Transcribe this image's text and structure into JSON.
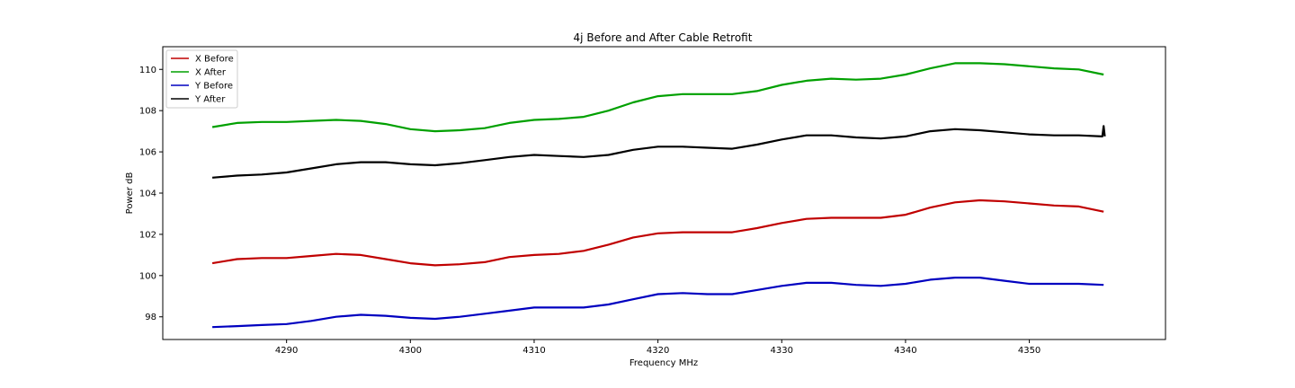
{
  "chart_data": {
    "type": "line",
    "title": "4j Before and After Cable Retrofit",
    "xlabel": "Frequency MHz",
    "ylabel": "Power dB",
    "xlim": [
      4280,
      4361
    ],
    "ylim": [
      96.9,
      111.1
    ],
    "xticks": [
      4290,
      4300,
      4310,
      4320,
      4330,
      4340,
      4350
    ],
    "yticks": [
      98,
      100,
      102,
      104,
      106,
      108,
      110
    ],
    "grid": false,
    "legend_position": "top-left",
    "series": [
      {
        "name": "X Before",
        "color": "#c00000",
        "x": [
          4284,
          4286,
          4288,
          4290,
          4292,
          4294,
          4296,
          4298,
          4300,
          4302,
          4304,
          4306,
          4308,
          4310,
          4312,
          4314,
          4316,
          4318,
          4320,
          4322,
          4324,
          4326,
          4328,
          4330,
          4332,
          4334,
          4336,
          4338,
          4340,
          4342,
          4344,
          4346,
          4348,
          4350,
          4352,
          4354,
          4356
        ],
        "y": [
          100.6,
          100.8,
          100.85,
          100.85,
          100.95,
          101.05,
          101.0,
          100.8,
          100.6,
          100.5,
          100.55,
          100.65,
          100.9,
          101.0,
          101.05,
          101.2,
          101.5,
          101.85,
          102.05,
          102.1,
          102.1,
          102.1,
          102.3,
          102.55,
          102.75,
          102.8,
          102.8,
          102.8,
          102.95,
          103.3,
          103.55,
          103.65,
          103.6,
          103.5,
          103.4,
          103.35,
          103.1
        ]
      },
      {
        "name": "X After",
        "color": "#00a000",
        "x": [
          4284,
          4286,
          4288,
          4290,
          4292,
          4294,
          4296,
          4298,
          4300,
          4302,
          4304,
          4306,
          4308,
          4310,
          4312,
          4314,
          4316,
          4318,
          4320,
          4322,
          4324,
          4326,
          4328,
          4330,
          4332,
          4334,
          4336,
          4338,
          4340,
          4342,
          4344,
          4346,
          4348,
          4350,
          4352,
          4354,
          4356
        ],
        "y": [
          107.2,
          107.4,
          107.45,
          107.45,
          107.5,
          107.55,
          107.5,
          107.35,
          107.1,
          107.0,
          107.05,
          107.15,
          107.4,
          107.55,
          107.6,
          107.7,
          108.0,
          108.4,
          108.7,
          108.8,
          108.8,
          108.8,
          108.95,
          109.25,
          109.45,
          109.55,
          109.5,
          109.55,
          109.75,
          110.05,
          110.3,
          110.3,
          110.25,
          110.15,
          110.05,
          110.0,
          109.75
        ]
      },
      {
        "name": "Y Before",
        "color": "#0000c0",
        "x": [
          4284,
          4286,
          4288,
          4290,
          4292,
          4294,
          4296,
          4298,
          4300,
          4302,
          4304,
          4306,
          4308,
          4310,
          4312,
          4314,
          4316,
          4318,
          4320,
          4322,
          4324,
          4326,
          4328,
          4330,
          4332,
          4334,
          4336,
          4338,
          4340,
          4342,
          4344,
          4346,
          4348,
          4350,
          4352,
          4354,
          4356
        ],
        "y": [
          97.5,
          97.55,
          97.6,
          97.65,
          97.8,
          98.0,
          98.1,
          98.05,
          97.95,
          97.9,
          98.0,
          98.15,
          98.3,
          98.45,
          98.45,
          98.45,
          98.6,
          98.85,
          99.1,
          99.15,
          99.1,
          99.1,
          99.3,
          99.5,
          99.65,
          99.65,
          99.55,
          99.5,
          99.6,
          99.8,
          99.9,
          99.9,
          99.75,
          99.6,
          99.6,
          99.6,
          99.55
        ]
      },
      {
        "name": "Y After",
        "color": "#000000",
        "x": [
          4284,
          4286,
          4288,
          4290,
          4292,
          4294,
          4296,
          4298,
          4300,
          4302,
          4304,
          4306,
          4308,
          4310,
          4312,
          4314,
          4316,
          4318,
          4320,
          4322,
          4324,
          4326,
          4328,
          4330,
          4332,
          4334,
          4336,
          4338,
          4340,
          4342,
          4344,
          4346,
          4348,
          4350,
          4352,
          4354,
          4355.9,
          4356,
          4356.1
        ],
        "y": [
          104.75,
          104.85,
          104.9,
          105.0,
          105.2,
          105.4,
          105.5,
          105.5,
          105.4,
          105.35,
          105.45,
          105.6,
          105.75,
          105.85,
          105.8,
          105.75,
          105.85,
          106.1,
          106.25,
          106.25,
          106.2,
          106.15,
          106.35,
          106.6,
          106.8,
          106.8,
          106.7,
          106.65,
          106.75,
          107.0,
          107.1,
          107.05,
          106.95,
          106.85,
          106.8,
          106.8,
          106.75,
          107.25,
          106.75
        ]
      }
    ]
  }
}
